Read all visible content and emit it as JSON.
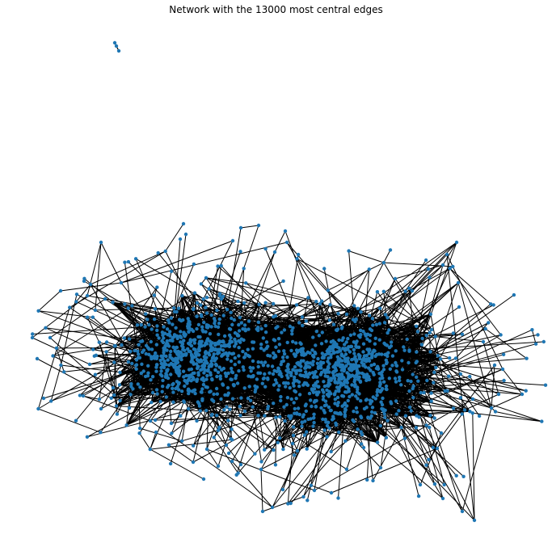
{
  "figure": {
    "title": "Network with the 13000 most central edges"
  },
  "colors": {
    "node": "#1f77b4",
    "edge": "#000000",
    "background": "#ffffff"
  },
  "chart_data": {
    "type": "network",
    "title": "Network with the 13000 most central edges",
    "edge_count_in_title": 13000,
    "axes_visible": false,
    "components": [
      {
        "name": "isolated small component",
        "approx_nodes": 3
      },
      {
        "name": "main component",
        "clusters": 2,
        "approx_visible_nodes": 1500
      }
    ]
  }
}
